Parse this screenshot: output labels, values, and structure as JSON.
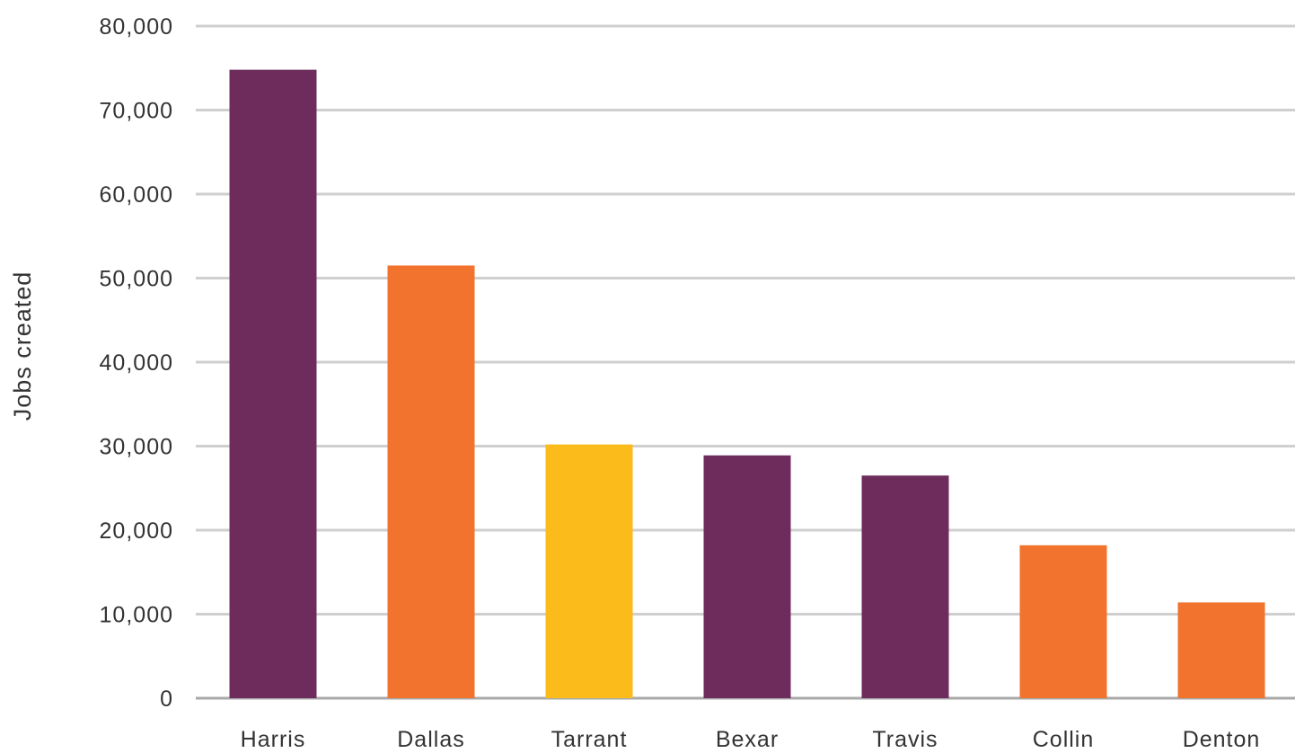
{
  "chart_data": {
    "type": "bar",
    "title": "",
    "xlabel": "",
    "ylabel": "Jobs created",
    "categories": [
      "Harris",
      "Dallas",
      "Tarrant",
      "Bexar",
      "Travis",
      "Collin",
      "Denton"
    ],
    "values": [
      74800,
      51500,
      30200,
      28900,
      26500,
      18200,
      11400
    ],
    "bar_colors": [
      "#6d2c5b",
      "#f1732d",
      "#fbbb1a",
      "#6d2c5b",
      "#6d2c5b",
      "#f1732d",
      "#f1732d"
    ],
    "ylim": [
      0,
      80000
    ],
    "yticks": [
      0,
      10000,
      20000,
      30000,
      40000,
      50000,
      60000,
      70000,
      80000
    ],
    "ytick_labels": [
      "0",
      "10,000",
      "20,000",
      "30,000",
      "40,000",
      "50,000",
      "60,000",
      "70,000",
      "80,000"
    ],
    "grid": true,
    "legend": "none"
  }
}
